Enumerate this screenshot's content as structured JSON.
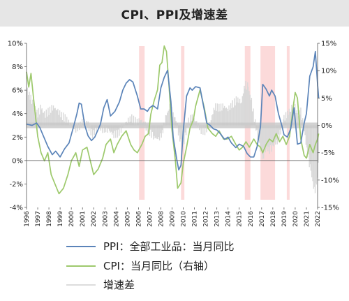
{
  "chart_data": {
    "type": "line",
    "title": "CPI、PPI及增速差",
    "x_axis": {
      "type": "year",
      "range": [
        1996,
        2022
      ],
      "ticks": [
        "1996",
        "1997",
        "1998",
        "1999",
        "2000",
        "2001",
        "2002",
        "2003",
        "2004",
        "2005",
        "2006",
        "2007",
        "2008",
        "2009",
        "2010",
        "2011",
        "2012",
        "2013",
        "2014",
        "2015",
        "2016",
        "2017",
        "2018",
        "2019",
        "2020",
        "2021",
        "2022"
      ]
    },
    "y_left": {
      "range": [
        -4,
        10
      ],
      "ticks": [
        "-4%",
        "-2%",
        "0%",
        "2%",
        "4%",
        "6%",
        "8%",
        "10%"
      ],
      "tick_values": [
        -4,
        -2,
        0,
        2,
        4,
        6,
        8,
        10
      ]
    },
    "y_right": {
      "range": [
        -15,
        15
      ],
      "ticks": [
        "-15%",
        "-10%",
        "-5%",
        "0%",
        "5%",
        "10%",
        "15%"
      ],
      "tick_values": [
        -15,
        -10,
        -5,
        0,
        5,
        10,
        15
      ]
    },
    "reference_line": {
      "axis": "left",
      "value": 3,
      "color": "#c8c8c8"
    },
    "shaded_periods": [
      {
        "start": 2006.05,
        "end": 2006.55
      },
      {
        "start": 2009.8,
        "end": 2010.1
      },
      {
        "start": 2015.5,
        "end": 2016.0
      },
      {
        "start": 2016.9,
        "end": 2018.2
      },
      {
        "start": 2019.25,
        "end": 2019.5
      }
    ],
    "series": [
      {
        "name": "PPI：全部工业品：当月同比",
        "axis": "left",
        "color": "#5b84b9",
        "points": [
          [
            1996.0,
            3.1
          ],
          [
            1996.5,
            3.0
          ],
          [
            1996.9,
            3.2
          ],
          [
            1997.2,
            2.8
          ],
          [
            1997.5,
            2.1
          ],
          [
            1997.9,
            1.2
          ],
          [
            1998.3,
            0.5
          ],
          [
            1998.6,
            0.8
          ],
          [
            1999.0,
            0.3
          ],
          [
            1999.4,
            1.0
          ],
          [
            1999.8,
            1.5
          ],
          [
            2000.2,
            2.9
          ],
          [
            2000.5,
            4.0
          ],
          [
            2000.7,
            4.9
          ],
          [
            2000.9,
            4.8
          ],
          [
            2001.2,
            3.0
          ],
          [
            2001.5,
            2.1
          ],
          [
            2001.8,
            1.7
          ],
          [
            2002.1,
            2.0
          ],
          [
            2002.6,
            3.1
          ],
          [
            2002.9,
            4.5
          ],
          [
            2003.2,
            5.2
          ],
          [
            2003.5,
            3.8
          ],
          [
            2003.9,
            4.2
          ],
          [
            2004.3,
            5.0
          ],
          [
            2004.6,
            6.0
          ],
          [
            2004.9,
            6.6
          ],
          [
            2005.2,
            6.9
          ],
          [
            2005.5,
            6.7
          ],
          [
            2005.9,
            5.5
          ],
          [
            2006.2,
            4.4
          ],
          [
            2006.5,
            4.4
          ],
          [
            2006.8,
            4.2
          ],
          [
            2007.0,
            4.5
          ],
          [
            2007.3,
            4.7
          ],
          [
            2007.7,
            4.4
          ],
          [
            2008.0,
            6.2
          ],
          [
            2008.3,
            7.1
          ],
          [
            2008.6,
            7.7
          ],
          [
            2008.9,
            5.0
          ],
          [
            2009.1,
            2.0
          ],
          [
            2009.4,
            0.2
          ],
          [
            2009.6,
            -0.8
          ],
          [
            2009.8,
            -0.4
          ],
          [
            2010.0,
            2.5
          ],
          [
            2010.3,
            5.5
          ],
          [
            2010.6,
            6.2
          ],
          [
            2010.8,
            6.0
          ],
          [
            2011.1,
            6.3
          ],
          [
            2011.5,
            6.2
          ],
          [
            2011.8,
            4.7
          ],
          [
            2012.1,
            3.2
          ],
          [
            2012.4,
            3.0
          ],
          [
            2012.7,
            2.7
          ],
          [
            2013.0,
            2.6
          ],
          [
            2013.3,
            2.3
          ],
          [
            2013.7,
            1.8
          ],
          [
            2014.0,
            2.0
          ],
          [
            2014.3,
            1.5
          ],
          [
            2014.7,
            1.1
          ],
          [
            2015.0,
            1.4
          ],
          [
            2015.4,
            1.2
          ],
          [
            2015.7,
            0.6
          ],
          [
            2016.0,
            0.3
          ],
          [
            2016.3,
            0.3
          ],
          [
            2016.6,
            1.2
          ],
          [
            2016.9,
            2.9
          ],
          [
            2017.1,
            6.5
          ],
          [
            2017.4,
            6.1
          ],
          [
            2017.7,
            5.5
          ],
          [
            2017.9,
            6.0
          ],
          [
            2018.2,
            5.5
          ],
          [
            2018.5,
            4.0
          ],
          [
            2018.8,
            3.0
          ],
          [
            2019.0,
            2.2
          ],
          [
            2019.3,
            2.0
          ],
          [
            2019.6,
            2.7
          ],
          [
            2019.9,
            4.5
          ],
          [
            2020.2,
            1.4
          ],
          [
            2020.5,
            1.5
          ],
          [
            2020.8,
            3.2
          ],
          [
            2021.0,
            4.0
          ],
          [
            2021.3,
            7.2
          ],
          [
            2021.6,
            8.0
          ],
          [
            2021.8,
            9.3
          ],
          [
            2022.0,
            6.5
          ],
          [
            2022.1,
            5.3
          ]
        ]
      },
      {
        "name": "CPI：当月同比（右轴）",
        "axis": "right",
        "color": "#9dc96c",
        "points": [
          [
            1996.0,
            9.8
          ],
          [
            1996.2,
            7.0
          ],
          [
            1996.4,
            9.5
          ],
          [
            1996.6,
            5.5
          ],
          [
            1997.0,
            -2.0
          ],
          [
            1997.3,
            -5.0
          ],
          [
            1997.6,
            -6.5
          ],
          [
            1997.9,
            -5.0
          ],
          [
            1998.2,
            -9.0
          ],
          [
            1998.5,
            -10.5
          ],
          [
            1998.9,
            -12.5
          ],
          [
            1999.3,
            -11.5
          ],
          [
            1999.7,
            -9.0
          ],
          [
            2000.0,
            -6.5
          ],
          [
            2000.4,
            -5.0
          ],
          [
            2000.7,
            -7.5
          ],
          [
            2001.0,
            -4.5
          ],
          [
            2001.4,
            -4.0
          ],
          [
            2001.7,
            -6.5
          ],
          [
            2002.0,
            -9.0
          ],
          [
            2002.4,
            -8.0
          ],
          [
            2002.8,
            -6.0
          ],
          [
            2003.1,
            -3.5
          ],
          [
            2003.5,
            -2.5
          ],
          [
            2003.8,
            -5.0
          ],
          [
            2004.1,
            -3.5
          ],
          [
            2004.5,
            -2.0
          ],
          [
            2004.9,
            -1.0
          ],
          [
            2005.3,
            -3.5
          ],
          [
            2005.6,
            -4.5
          ],
          [
            2005.9,
            -5.0
          ],
          [
            2006.3,
            -3.5
          ],
          [
            2006.6,
            -2.0
          ],
          [
            2006.9,
            -1.5
          ],
          [
            2007.1,
            2.0
          ],
          [
            2007.4,
            4.5
          ],
          [
            2007.7,
            6.5
          ],
          [
            2007.9,
            11.0
          ],
          [
            2008.1,
            11.5
          ],
          [
            2008.3,
            14.5
          ],
          [
            2008.5,
            13.5
          ],
          [
            2008.7,
            8.0
          ],
          [
            2009.0,
            -1.0
          ],
          [
            2009.3,
            -6.5
          ],
          [
            2009.5,
            -11.5
          ],
          [
            2009.8,
            -10.5
          ],
          [
            2010.0,
            -7.0
          ],
          [
            2010.3,
            -4.0
          ],
          [
            2010.6,
            -0.5
          ],
          [
            2010.9,
            1.0
          ],
          [
            2011.1,
            3.5
          ],
          [
            2011.5,
            6.5
          ],
          [
            2011.9,
            3.0
          ],
          [
            2012.2,
            -0.5
          ],
          [
            2012.6,
            -1.5
          ],
          [
            2012.9,
            -2.0
          ],
          [
            2013.2,
            -1.0
          ],
          [
            2013.6,
            -2.5
          ],
          [
            2013.9,
            -2.5
          ],
          [
            2014.3,
            -2.0
          ],
          [
            2014.7,
            -3.5
          ],
          [
            2015.0,
            -4.5
          ],
          [
            2015.3,
            -4.0
          ],
          [
            2015.6,
            -3.0
          ],
          [
            2015.9,
            -4.0
          ],
          [
            2016.3,
            -2.5
          ],
          [
            2016.6,
            -3.5
          ],
          [
            2016.9,
            -4.0
          ],
          [
            2017.1,
            -5.0
          ],
          [
            2017.4,
            -3.5
          ],
          [
            2017.7,
            -2.5
          ],
          [
            2018.0,
            -3.0
          ],
          [
            2018.3,
            -1.5
          ],
          [
            2018.6,
            -3.0
          ],
          [
            2018.9,
            -2.0
          ],
          [
            2019.2,
            -3.5
          ],
          [
            2019.5,
            -2.0
          ],
          [
            2019.8,
            3.0
          ],
          [
            2020.0,
            6.0
          ],
          [
            2020.2,
            5.0
          ],
          [
            2020.5,
            -2.5
          ],
          [
            2020.8,
            -5.5
          ],
          [
            2021.0,
            -6.0
          ],
          [
            2021.3,
            -3.5
          ],
          [
            2021.6,
            -5.0
          ],
          [
            2021.8,
            -3.5
          ],
          [
            2022.0,
            -2.5
          ],
          [
            2022.1,
            -1.5
          ]
        ]
      },
      {
        "name": "增速差",
        "axis": "left",
        "color": "#d9d9d9",
        "type": "area_bars",
        "baseline": 3,
        "points": [
          [
            1996.0,
            6.2
          ],
          [
            1996.3,
            5.5
          ],
          [
            1996.6,
            4.8
          ],
          [
            1997.0,
            4.0
          ],
          [
            1997.3,
            4.5
          ],
          [
            1997.6,
            3.9
          ],
          [
            1998.0,
            4.2
          ],
          [
            1998.4,
            4.6
          ],
          [
            1998.8,
            4.2
          ],
          [
            1999.2,
            3.8
          ],
          [
            1999.6,
            3.5
          ],
          [
            2000.0,
            3.0
          ],
          [
            2000.4,
            2.7
          ],
          [
            2000.8,
            3.0
          ],
          [
            2001.1,
            3.5
          ],
          [
            2001.5,
            3.0
          ],
          [
            2001.9,
            2.2
          ],
          [
            2002.3,
            2.8
          ],
          [
            2002.7,
            2.6
          ],
          [
            2003.0,
            2.7
          ],
          [
            2003.4,
            2.5
          ],
          [
            2003.8,
            2.2
          ],
          [
            2004.2,
            2.3
          ],
          [
            2004.6,
            2.9
          ],
          [
            2005.0,
            3.4
          ],
          [
            2005.4,
            3.6
          ],
          [
            2005.8,
            3.3
          ],
          [
            2006.2,
            3.5
          ],
          [
            2006.6,
            3.0
          ],
          [
            2007.0,
            2.4
          ],
          [
            2007.4,
            2.0
          ],
          [
            2007.8,
            1.8
          ],
          [
            2008.1,
            2.3
          ],
          [
            2008.5,
            3.9
          ],
          [
            2008.8,
            4.5
          ],
          [
            2009.1,
            4.0
          ],
          [
            2009.4,
            3.3
          ],
          [
            2009.7,
            1.8
          ],
          [
            2010.0,
            1.3
          ],
          [
            2010.4,
            3.2
          ],
          [
            2010.8,
            3.8
          ],
          [
            2011.2,
            3.2
          ],
          [
            2011.6,
            2.6
          ],
          [
            2012.0,
            2.5
          ],
          [
            2012.4,
            3.2
          ],
          [
            2012.8,
            4.6
          ],
          [
            2013.2,
            4.5
          ],
          [
            2013.6,
            4.6
          ],
          [
            2014.0,
            4.4
          ],
          [
            2014.4,
            4.8
          ],
          [
            2014.8,
            5.2
          ],
          [
            2015.2,
            5.0
          ],
          [
            2015.5,
            6.5
          ],
          [
            2015.8,
            6.3
          ],
          [
            2016.1,
            5.0
          ],
          [
            2016.5,
            2.8
          ],
          [
            2016.8,
            1.3
          ],
          [
            2017.1,
            0.2
          ],
          [
            2017.4,
            1.1
          ],
          [
            2017.7,
            0.9
          ],
          [
            2018.0,
            1.2
          ],
          [
            2018.4,
            1.7
          ],
          [
            2018.7,
            2.4
          ],
          [
            2019.0,
            3.6
          ],
          [
            2019.3,
            4.0
          ],
          [
            2019.6,
            4.4
          ],
          [
            2019.9,
            4.8
          ],
          [
            2020.2,
            3.9
          ],
          [
            2020.5,
            4.2
          ],
          [
            2020.8,
            2.6
          ],
          [
            2021.1,
            0.6
          ],
          [
            2021.4,
            -0.9
          ],
          [
            2021.7,
            -2.6
          ],
          [
            2021.9,
            -2.2
          ],
          [
            2022.1,
            0.0
          ]
        ]
      }
    ],
    "legend": {
      "placement": "bottom",
      "entries": [
        "PPI：全部工业品：当月同比",
        "CPI：当月同比（右轴）",
        "增速差"
      ]
    }
  }
}
